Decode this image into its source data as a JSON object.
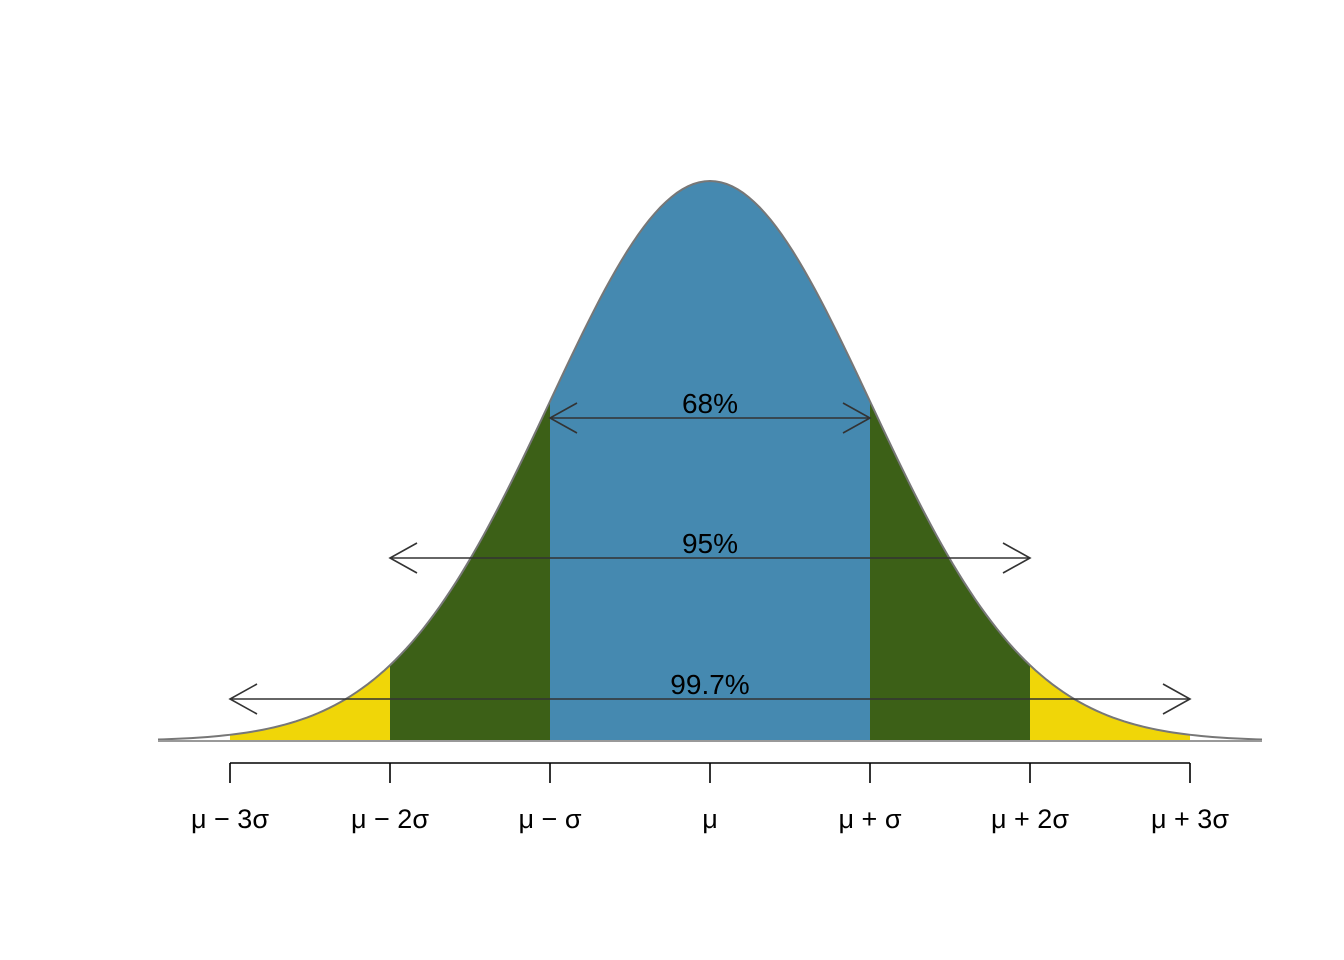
{
  "chart_data": {
    "type": "area",
    "distribution": "normal",
    "x_unit": "standard deviations from mean",
    "xlim": [
      -3.45,
      3.45
    ],
    "grid": false,
    "tick_values": [
      -3,
      -2,
      -1,
      0,
      1,
      2,
      3
    ],
    "tick_labels": [
      "μ − 3σ",
      "μ − 2σ",
      "μ − σ",
      "μ",
      "μ + σ",
      "μ + 2σ",
      "μ + 3σ"
    ],
    "regions": [
      {
        "from": -1,
        "to": 1,
        "color": "#4589B0"
      },
      {
        "from": -2,
        "to": -1,
        "color": "#3C6017"
      },
      {
        "from": 1,
        "to": 2,
        "color": "#3C6017"
      },
      {
        "from": -3,
        "to": -2,
        "color": "#F0D608"
      },
      {
        "from": 2,
        "to": 3,
        "color": "#F0D608"
      }
    ],
    "intervals": [
      {
        "label": "68%",
        "from": -1,
        "to": 1
      },
      {
        "label": "95%",
        "from": -2,
        "to": 2
      },
      {
        "label": "99.7%",
        "from": -3,
        "to": 3
      }
    ],
    "curve_color": "#777777",
    "arrow_color": "#333333"
  }
}
